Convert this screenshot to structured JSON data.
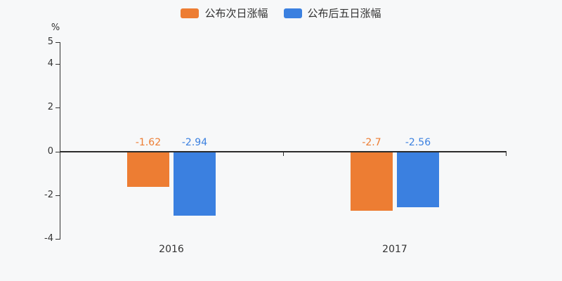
{
  "chart_data": {
    "type": "bar",
    "title": "",
    "categories": [
      "2016",
      "2017"
    ],
    "series": [
      {
        "name": "公布次日涨幅",
        "color": "#ED7D33",
        "values": [
          -1.62,
          -2.7
        ],
        "labels": [
          "-1.62",
          "-2.7"
        ]
      },
      {
        "name": "公布后五日涨幅",
        "color": "#3B80E0",
        "values": [
          -2.94,
          -2.56
        ],
        "labels": [
          "-2.94",
          "-2.56"
        ]
      }
    ],
    "xlabel": "",
    "ylabel": "%",
    "ylim": [
      -4,
      5
    ],
    "yticks": [
      5,
      4,
      2,
      0,
      -2,
      -4
    ],
    "grid": false,
    "legend_position": "top",
    "background_color": "#f7f8f9",
    "axis_color": "#333333",
    "text_color": "#333333"
  }
}
